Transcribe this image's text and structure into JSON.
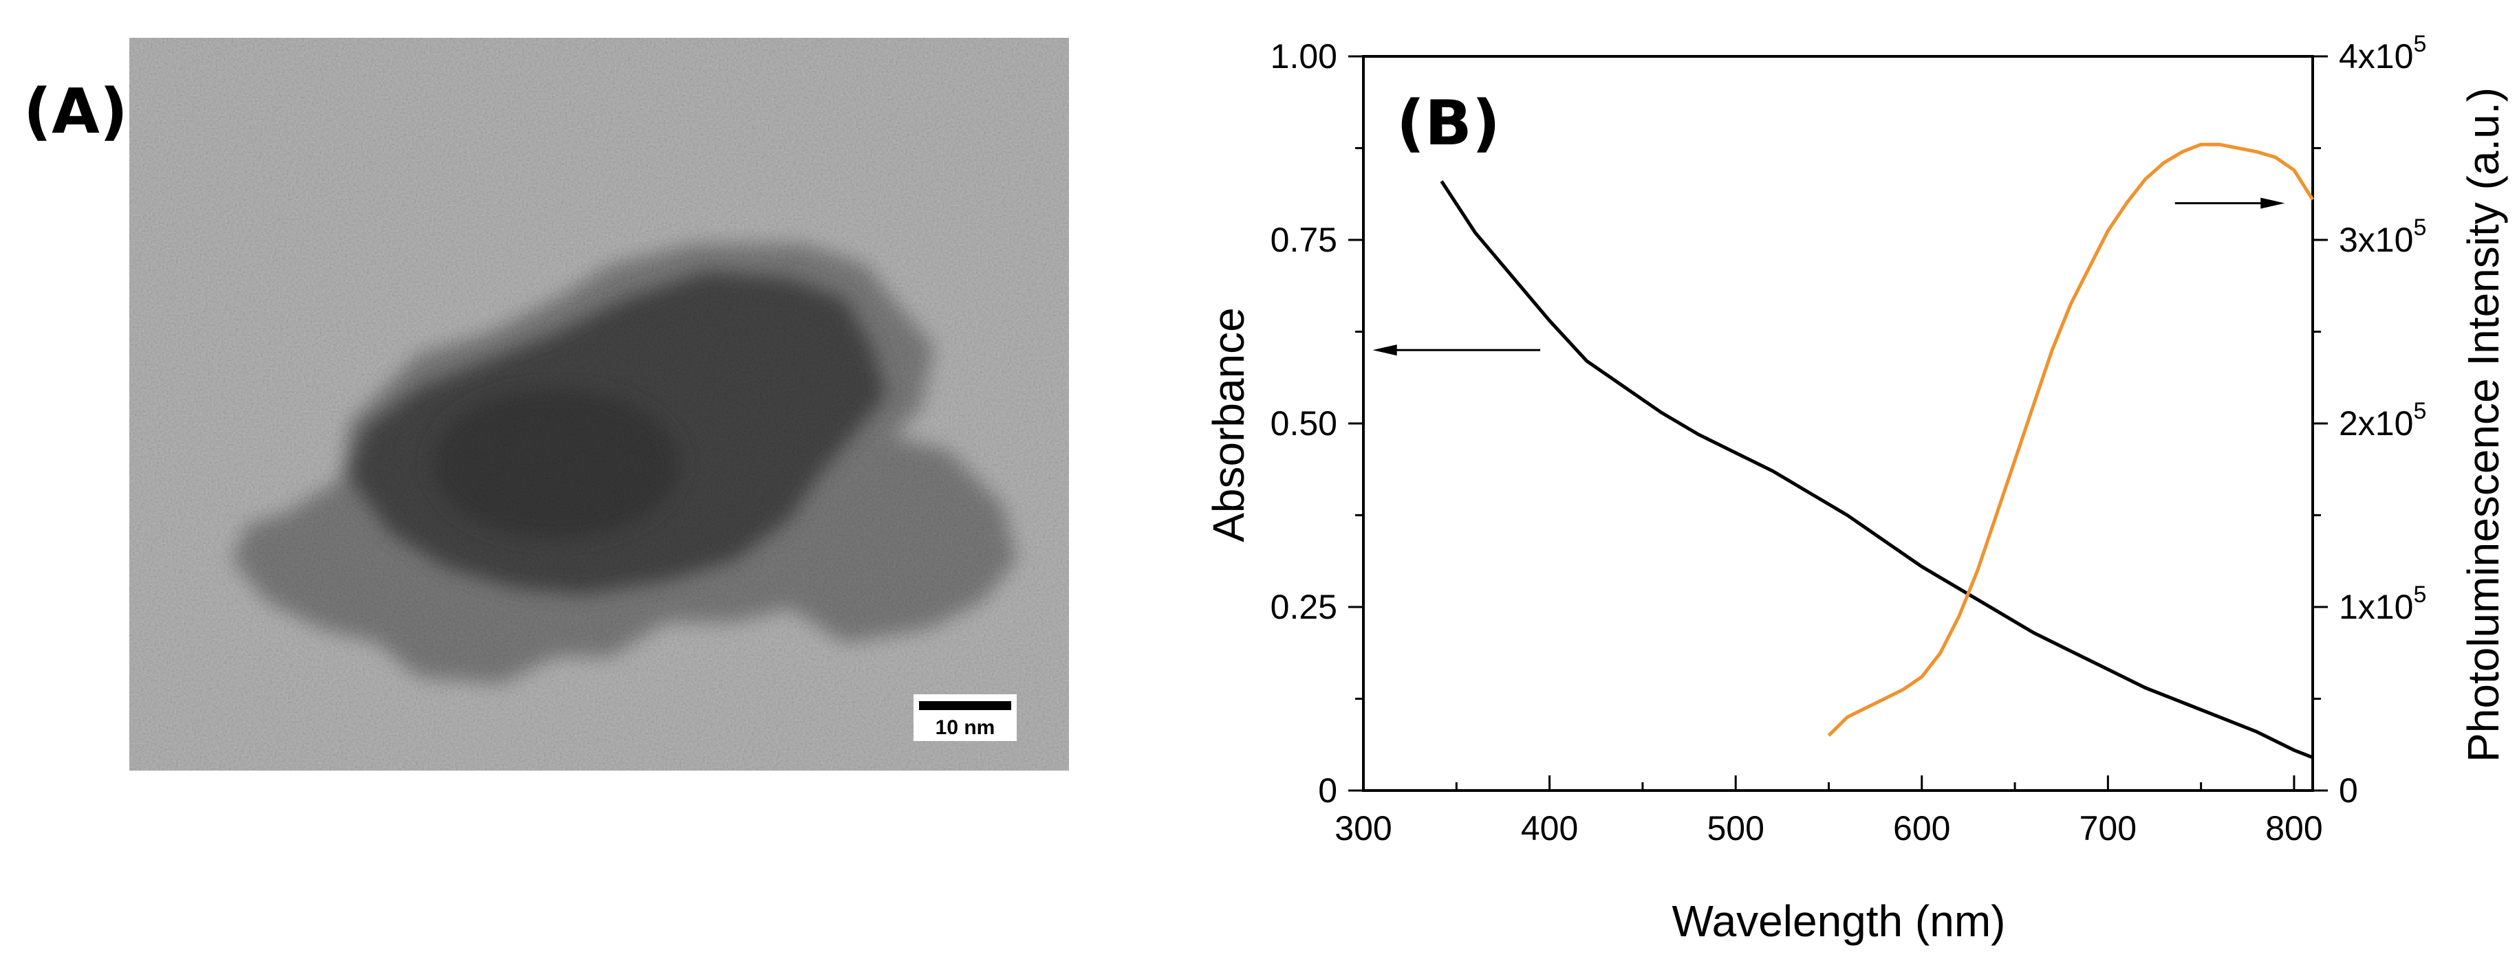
{
  "panel_a": {
    "label": "(A)",
    "scale_bar_label": "10 nm"
  },
  "panel_b": {
    "label": "(B)"
  },
  "chart_data": {
    "type": "line",
    "title": "",
    "xlabel": "Wavelength (nm)",
    "ylabel": "Absorbance",
    "ylabel_right": "Photoluminescence Intensity (a.u.)",
    "xlim": [
      300,
      810
    ],
    "ylim": [
      0,
      1.0
    ],
    "ylim_right": [
      0,
      400000
    ],
    "x_ticks": [
      300,
      400,
      500,
      600,
      700,
      800
    ],
    "x_tick_labels": [
      "300",
      "400",
      "500",
      "600",
      "700",
      "800"
    ],
    "y_ticks": [
      0,
      0.25,
      0.5,
      0.75,
      1.0
    ],
    "y_tick_labels": [
      "0",
      "0.25",
      "0.50",
      "0.75",
      "1.00"
    ],
    "y_right_ticks": [
      0,
      100000,
      200000,
      300000,
      400000
    ],
    "y_right_tick_labels": [
      {
        "base": "0",
        "exp": ""
      },
      {
        "base": "1x10",
        "exp": "5"
      },
      {
        "base": "2x10",
        "exp": "5"
      },
      {
        "base": "3x10",
        "exp": "5"
      },
      {
        "base": "4x10",
        "exp": "5"
      }
    ],
    "grid": false,
    "series": [
      {
        "axis": "left",
        "color": "#000000",
        "x": [
          342,
          360,
          380,
          400,
          420,
          440,
          460,
          480,
          500,
          520,
          540,
          560,
          580,
          600,
          620,
          640,
          660,
          680,
          700,
          720,
          740,
          760,
          780,
          800,
          810
        ],
        "y": [
          0.83,
          0.76,
          0.7,
          0.64,
          0.585,
          0.55,
          0.515,
          0.485,
          0.46,
          0.435,
          0.405,
          0.375,
          0.34,
          0.305,
          0.275,
          0.245,
          0.215,
          0.19,
          0.165,
          0.14,
          0.12,
          0.1,
          0.08,
          0.055,
          0.045
        ]
      },
      {
        "axis": "right",
        "color": "#f0922e",
        "x": [
          550,
          560,
          570,
          580,
          590,
          600,
          610,
          620,
          630,
          640,
          650,
          660,
          670,
          680,
          690,
          700,
          710,
          720,
          730,
          740,
          750,
          760,
          770,
          780,
          790,
          800,
          810
        ],
        "y": [
          30000,
          40000,
          45000,
          50000,
          55000,
          62000,
          75000,
          95000,
          120000,
          150000,
          180000,
          210000,
          240000,
          265000,
          285000,
          305000,
          320000,
          333000,
          342000,
          348000,
          352000,
          352000,
          350000,
          348000,
          345000,
          338000,
          322000
        ]
      }
    ],
    "annotations": [
      {
        "type": "arrow",
        "direction": "left",
        "points_to": "left-axis"
      },
      {
        "type": "arrow",
        "direction": "right",
        "points_to": "right-axis"
      }
    ]
  }
}
